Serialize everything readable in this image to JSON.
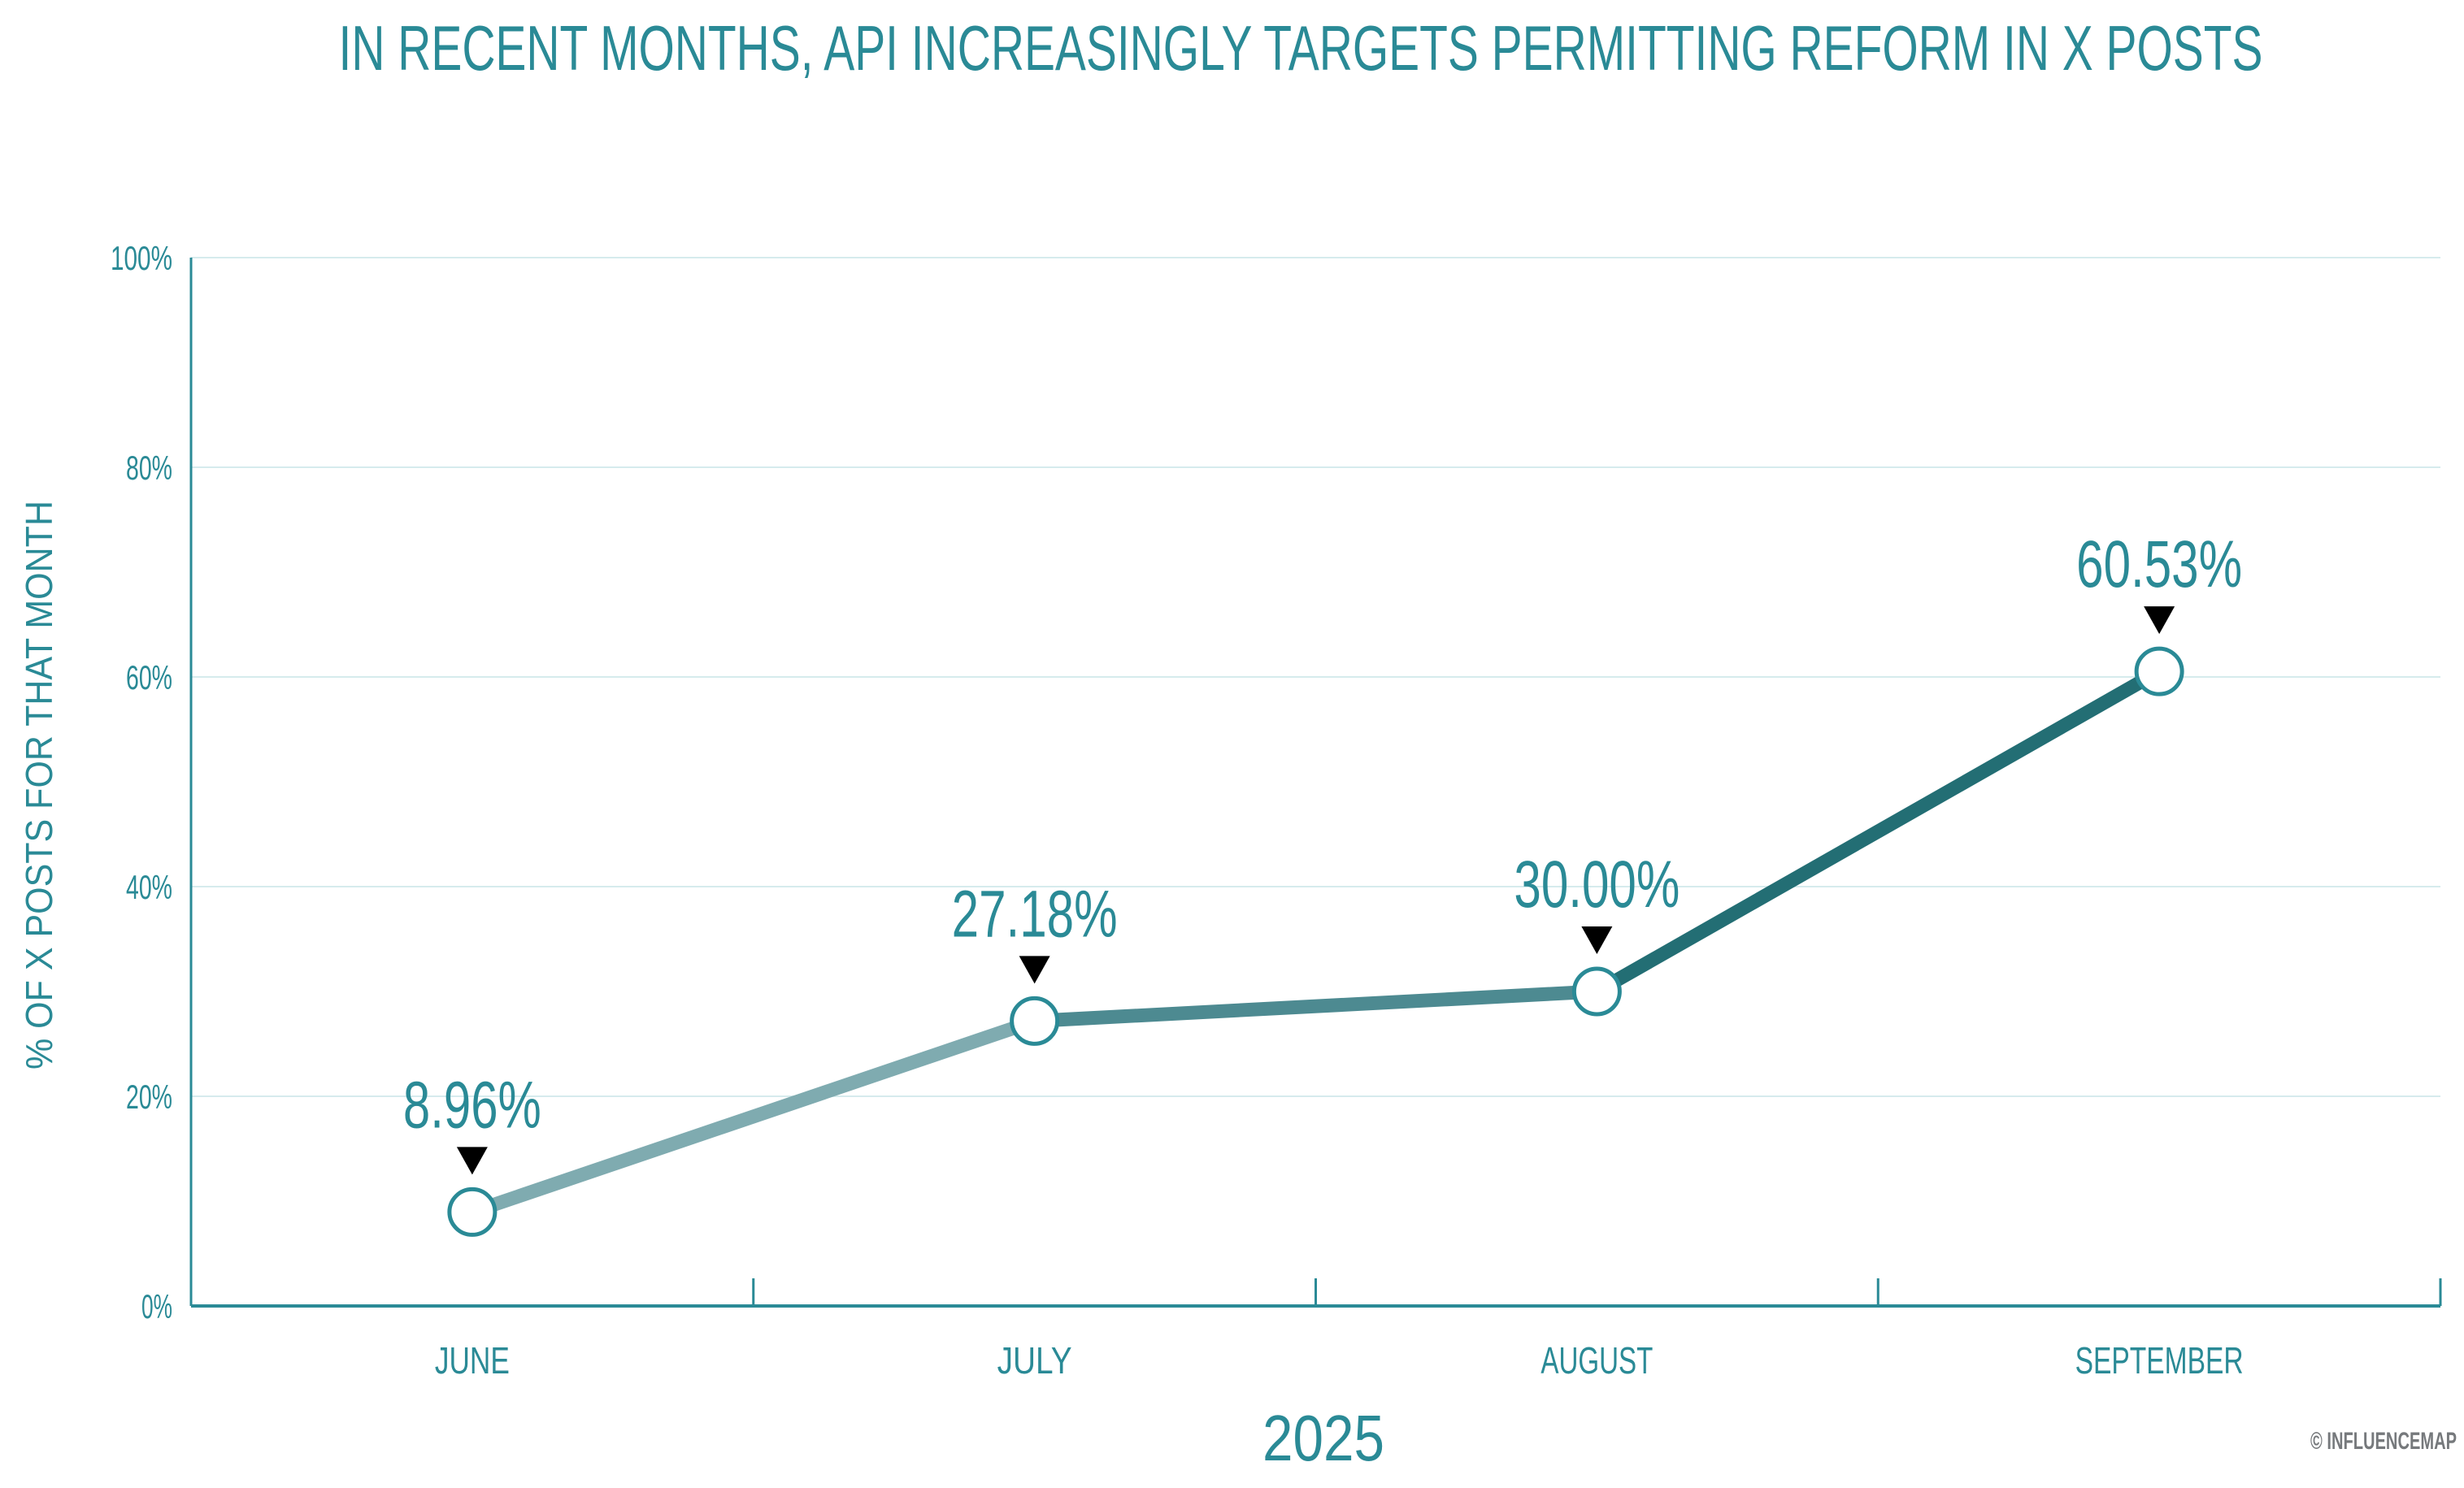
{
  "chart_data": {
    "type": "line",
    "title": "IN RECENT MONTHS, API INCREASINGLY TARGETS PERMITTING REFORM IN X POSTS",
    "xlabel": "2025",
    "ylabel": "% OF X POSTS FOR THAT MONTH",
    "categories": [
      "JUNE",
      "JULY",
      "AUGUST",
      "SEPTEMBER"
    ],
    "values": [
      8.96,
      27.18,
      30.0,
      60.53
    ],
    "data_labels": [
      "8.96%",
      "27.18%",
      "30.00%",
      "60.53%"
    ],
    "ylim": [
      0,
      100
    ],
    "yticks": [
      0,
      20,
      40,
      60,
      80,
      100
    ],
    "ytick_labels": [
      "0%",
      "20%",
      "40%",
      "60%",
      "80%",
      "100%"
    ],
    "grid": true,
    "segment_colors": [
      "#7fabb0",
      "#4d8a91",
      "#236e74"
    ],
    "accent_color": "#2a8a96",
    "credit": "© INFLUENCEMAP"
  }
}
